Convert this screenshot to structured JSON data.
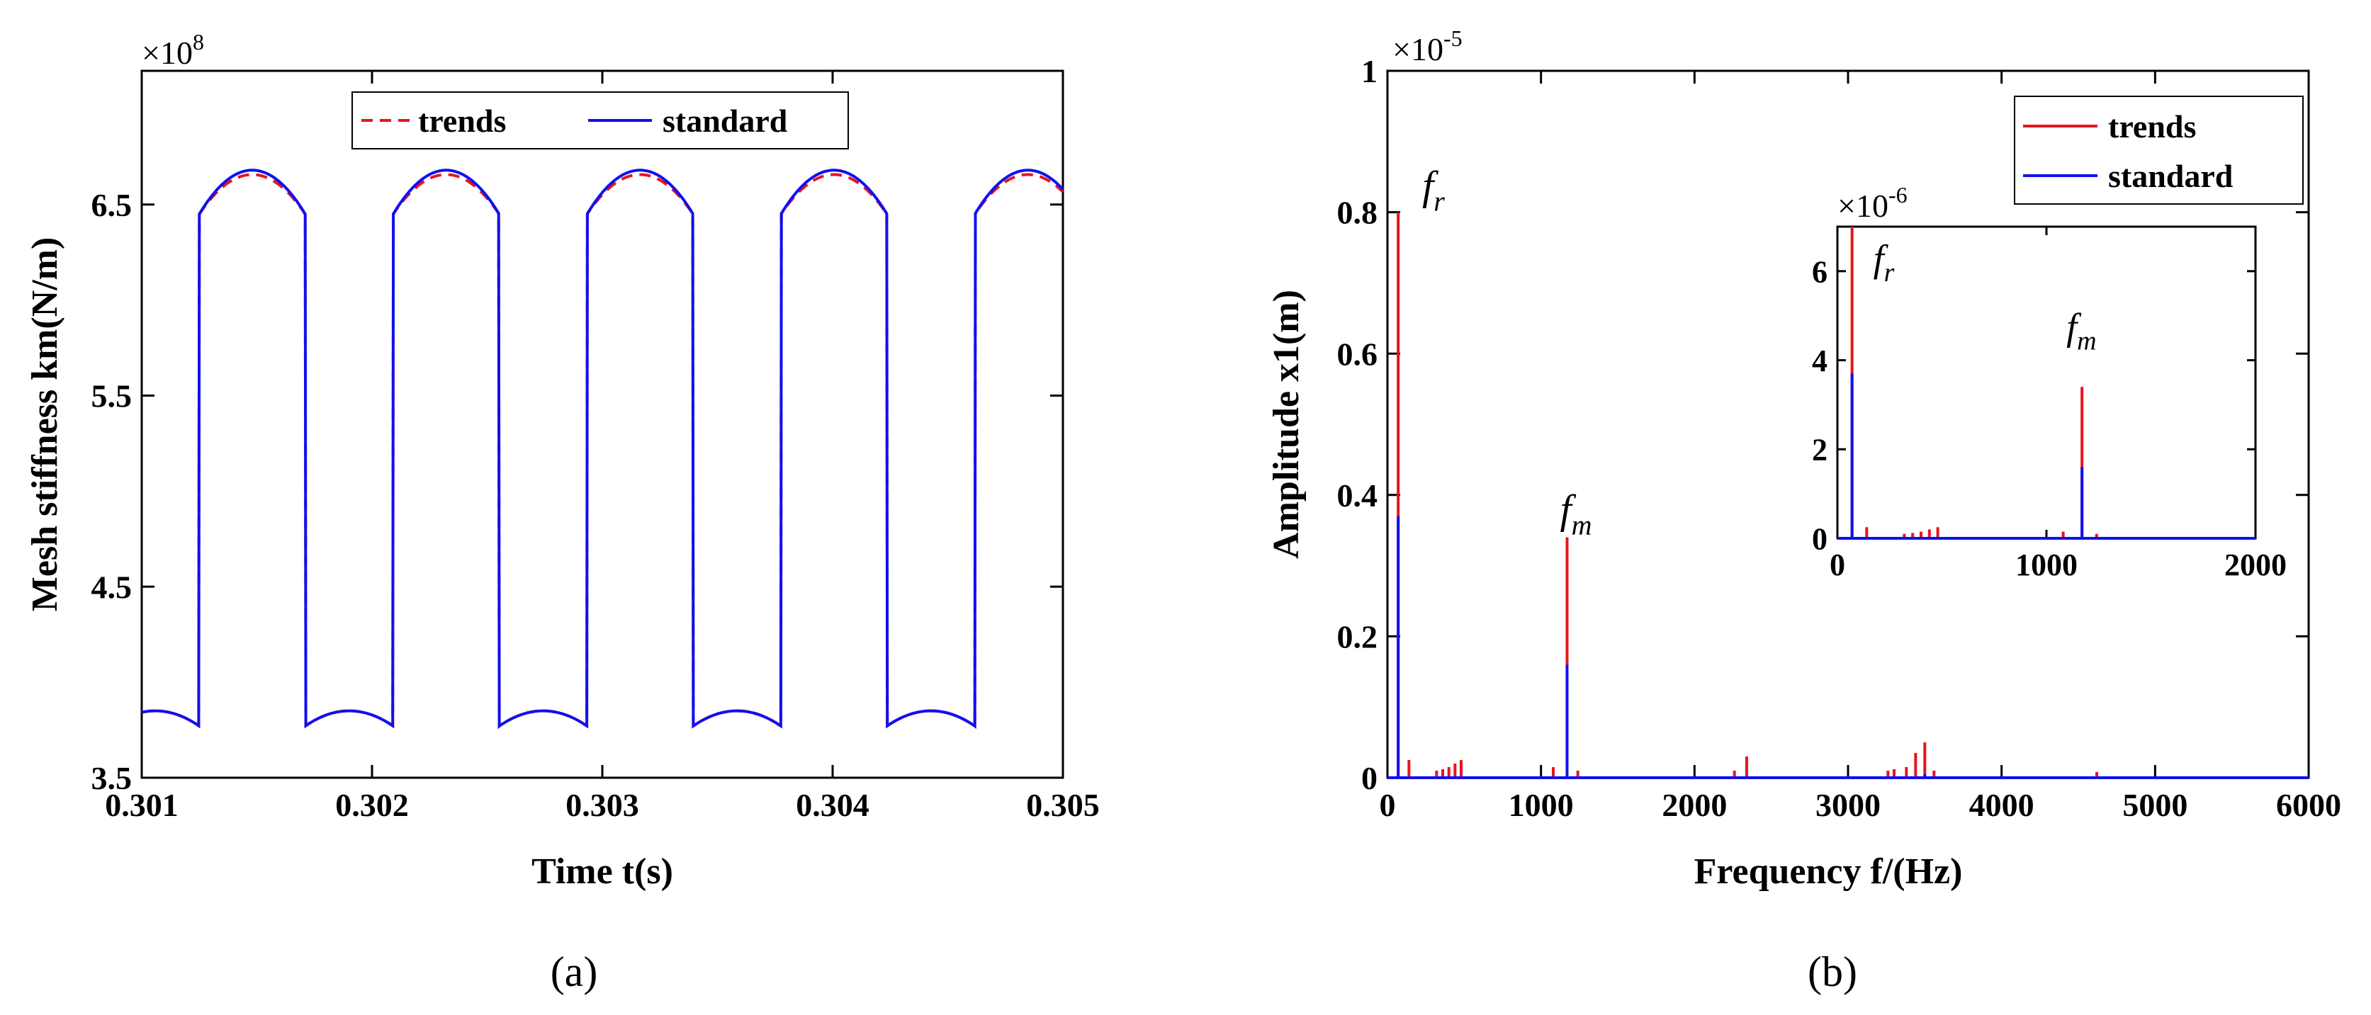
{
  "chart_data": [
    {
      "type": "line",
      "panel_label": "(a)",
      "xlabel": "Time t(s)",
      "ylabel": "Mesh stiffness km(N/m)",
      "y_multiplier": "×10",
      "y_multiplier_exp": "8",
      "xlim": [
        0.301,
        0.305
      ],
      "ylim": [
        3.5,
        7.2
      ],
      "xticks": [
        "0.301",
        "0.302",
        "0.303",
        "0.304",
        "0.305"
      ],
      "yticks": [
        "3.5",
        "4.5",
        "5.5",
        "6.5"
      ],
      "legend": {
        "position": "top",
        "entries": [
          "trends",
          "standard"
        ]
      },
      "mesh_model": {
        "period": 0.000842,
        "first_rise": 0.30125,
        "high_duration": 0.00046,
        "double_low": 3.85,
        "double_edge": 3.77,
        "single_edge": 6.45,
        "single_peak": 6.68
      },
      "series": [
        {
          "name": "trends",
          "color": "#e8141b",
          "style": "dashed"
        },
        {
          "name": "standard",
          "color": "#1010f0",
          "style": "solid"
        }
      ]
    },
    {
      "type": "line",
      "panel_label": "(b)",
      "xlabel": "Frequency f/(Hz)",
      "ylabel": "Amplitude x1(m)",
      "y_multiplier": "×10",
      "y_multiplier_exp": "-5",
      "xlim": [
        0,
        6000
      ],
      "ylim": [
        0,
        1
      ],
      "xticks": [
        "0",
        "1000",
        "2000",
        "3000",
        "4000",
        "5000",
        "6000"
      ],
      "yticks": [
        "0",
        "0.2",
        "0.4",
        "0.6",
        "0.8",
        "1"
      ],
      "legend": {
        "position": "top-right",
        "entries": [
          "trends",
          "standard"
        ]
      },
      "annotations": [
        {
          "base": "f",
          "sub": "r",
          "x": 70,
          "y": 0.8
        },
        {
          "base": "f",
          "sub": "m",
          "x": 1170,
          "y": 0.34
        }
      ],
      "series": [
        {
          "name": "trends",
          "color": "#e8141b",
          "peaks": [
            [
              70,
              0.8
            ],
            [
              140,
              0.025
            ],
            [
              320,
              0.01
            ],
            [
              360,
              0.012
            ],
            [
              400,
              0.015
            ],
            [
              440,
              0.02
            ],
            [
              480,
              0.025
            ],
            [
              1080,
              0.015
            ],
            [
              1170,
              0.34
            ],
            [
              1240,
              0.01
            ],
            [
              2260,
              0.01
            ],
            [
              2340,
              0.03
            ],
            [
              3260,
              0.01
            ],
            [
              3300,
              0.012
            ],
            [
              3380,
              0.015
            ],
            [
              3440,
              0.035
            ],
            [
              3500,
              0.05
            ],
            [
              3560,
              0.01
            ],
            [
              4620,
              0.008
            ]
          ]
        },
        {
          "name": "standard",
          "color": "#1010f0",
          "peaks": [
            [
              70,
              0.37
            ],
            [
              1170,
              0.16
            ],
            [
              3500,
              0.005
            ]
          ]
        }
      ],
      "inset": {
        "xlim": [
          0,
          2000
        ],
        "ylim": [
          0,
          7
        ],
        "xticks": [
          "0",
          "1000",
          "2000"
        ],
        "yticks": [
          "0",
          "2",
          "4",
          "6"
        ],
        "y_multiplier": "×10",
        "y_multiplier_exp": "-6",
        "annotations": [
          {
            "base": "f",
            "sub": "r",
            "x": 70,
            "y": 6.0
          },
          {
            "base": "f",
            "sub": "m",
            "x": 1170,
            "y": 4.3
          }
        ]
      }
    }
  ]
}
